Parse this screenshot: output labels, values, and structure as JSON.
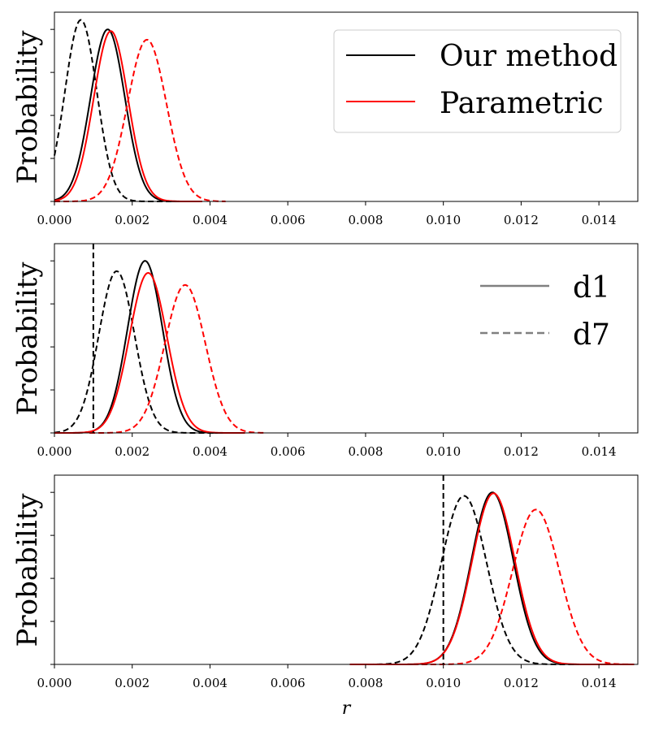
{
  "chart_data": {
    "type": "line",
    "xlabel": "r",
    "ylabel": "Probability",
    "xlim": [
      0,
      0.015
    ],
    "xticks": [
      "0.000",
      "0.002",
      "0.004",
      "0.006",
      "0.008",
      "0.010",
      "0.012",
      "0.014"
    ],
    "xtick_values": [
      0,
      0.002,
      0.004,
      0.006,
      0.008,
      0.01,
      0.012,
      0.014
    ],
    "colors": {
      "our_method": "#000000",
      "parametric": "#ff0000",
      "legend_line": "#808080"
    },
    "legends": {
      "methods": [
        "Our method",
        "Parametric"
      ],
      "datasets": [
        "d1",
        "d7"
      ]
    },
    "panels": [
      {
        "name": "panel-1",
        "legend": "methods",
        "ymax": 1.1,
        "vline": null,
        "series": [
          {
            "name": "Our method d1",
            "method": "Our method",
            "dataset": "d1",
            "mu": 0.00137,
            "sigma": 0.00044,
            "peak": 1.0,
            "range": [
              0,
              0.0033
            ]
          },
          {
            "name": "Our method d7",
            "method": "Our method",
            "dataset": "d7",
            "mu": 0.00068,
            "sigma": 0.00041,
            "peak": 1.055,
            "range": [
              0,
              0.0032
            ]
          },
          {
            "name": "Parametric d1",
            "method": "Parametric",
            "dataset": "d1",
            "mu": 0.00145,
            "sigma": 0.00044,
            "peak": 0.99,
            "range": [
              0,
              0.0038
            ]
          },
          {
            "name": "Parametric d7",
            "method": "Parametric",
            "dataset": "d7",
            "mu": 0.00238,
            "sigma": 0.0005,
            "peak": 0.94,
            "range": [
              0,
              0.0044
            ]
          }
        ]
      },
      {
        "name": "panel-2",
        "legend": "datasets",
        "ymax": 1.1,
        "vline": 0.001,
        "series": [
          {
            "name": "Our method d1",
            "method": "Our method",
            "dataset": "d1",
            "mu": 0.00233,
            "sigma": 0.00045,
            "peak": 1.0,
            "range": [
              0,
              0.0047
            ]
          },
          {
            "name": "Our method d7",
            "method": "Our method",
            "dataset": "d7",
            "mu": 0.0016,
            "sigma": 0.00046,
            "peak": 0.94,
            "range": [
              0,
              0.0042
            ]
          },
          {
            "name": "Parametric d1",
            "method": "Parametric",
            "dataset": "d1",
            "mu": 0.00241,
            "sigma": 0.00048,
            "peak": 0.93,
            "range": [
              0,
              0.0049
            ]
          },
          {
            "name": "Parametric d7",
            "method": "Parametric",
            "dataset": "d7",
            "mu": 0.00336,
            "sigma": 0.00052,
            "peak": 0.86,
            "range": [
              0.0009,
              0.0054
            ]
          }
        ]
      },
      {
        "name": "panel-3",
        "legend": null,
        "ymax": 1.1,
        "vline": 0.01,
        "series": [
          {
            "name": "Our method d1",
            "method": "Our method",
            "dataset": "d1",
            "mu": 0.01126,
            "sigma": 0.00054,
            "peak": 1.0,
            "range": [
              0.0076,
              0.0149
            ]
          },
          {
            "name": "Our method d7",
            "method": "Our method",
            "dataset": "d7",
            "mu": 0.01053,
            "sigma": 0.00058,
            "peak": 0.98,
            "range": [
              0.0076,
              0.0149
            ]
          },
          {
            "name": "Parametric d1",
            "method": "Parametric",
            "dataset": "d1",
            "mu": 0.01129,
            "sigma": 0.00055,
            "peak": 0.995,
            "range": [
              0.0076,
              0.0149
            ]
          },
          {
            "name": "Parametric d7",
            "method": "Parametric",
            "dataset": "d7",
            "mu": 0.01238,
            "sigma": 0.0006,
            "peak": 0.9,
            "range": [
              0.0076,
              0.0149
            ]
          }
        ]
      }
    ]
  }
}
